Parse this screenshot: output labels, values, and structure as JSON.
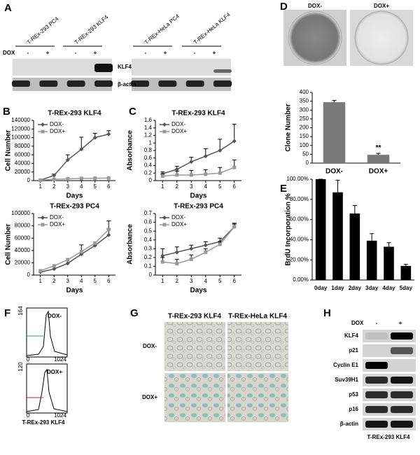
{
  "letters": [
    "A",
    "B",
    "C",
    "D",
    "E",
    "F",
    "G",
    "H"
  ],
  "blot_a": {
    "lanes": [
      "T-REx-293 PC4",
      "T-REx-293 KLF4",
      "T-REx-HeLa PC4",
      "T-REx-HeLa KLF4"
    ],
    "dox_label": "DOX",
    "dox_states": [
      "-",
      "+"
    ],
    "proteins": [
      "KLF4",
      "β-actin"
    ]
  },
  "dishes": {
    "labels": [
      "DOX-",
      "DOX+"
    ]
  },
  "flow": {
    "x_ticks": [
      "0",
      "1024"
    ],
    "plots": [
      {
        "label": "DOX-",
        "ymax": "164"
      },
      {
        "label": "DOX+",
        "ymax": "120"
      }
    ],
    "caption": "T-REx-293 KLF4"
  },
  "micro": {
    "columns": [
      "T-REx-293 KLF4",
      "T-REx-HeLa KLF4"
    ],
    "rows": [
      "DOX-",
      "DOX+"
    ]
  },
  "blot_h": {
    "dox_label": "DOX",
    "dox_states": [
      "-",
      "+"
    ],
    "proteins": [
      "KLF4",
      "p21",
      "Cyclin E1",
      "Suv39H1",
      "p53",
      "p16",
      "β-actin"
    ],
    "caption": "T-REx-293 KLF4"
  },
  "chart_data": [
    {
      "type": "line",
      "title": "T-REx-293 KLF4",
      "x_label": "Days",
      "y_label": "Cell Number",
      "x": [
        1,
        2,
        3,
        4,
        5,
        6
      ],
      "xlim": [
        0.5,
        6.5
      ],
      "xticks": [
        1,
        2,
        3,
        4,
        5,
        6
      ],
      "ylim": [
        0,
        140000
      ],
      "yticks": [
        0,
        20000,
        40000,
        60000,
        80000,
        100000,
        120000,
        140000
      ],
      "legend": "upper left",
      "series": [
        {
          "name": "DOX-",
          "color": "#555555",
          "marker": "diamond",
          "values": [
            1000,
            12000,
            48000,
            73000,
            100000,
            108000
          ],
          "errors": [
            null,
            3000,
            12000,
            28000,
            10000,
            8000
          ]
        },
        {
          "name": "DOX+",
          "color": "#999999",
          "marker": "square",
          "values": [
            1000,
            3000,
            4000,
            5000,
            5500,
            6000
          ],
          "errors": [
            null,
            null,
            null,
            null,
            null,
            null
          ]
        }
      ]
    },
    {
      "type": "line",
      "title": "T-REx-293 PC4",
      "x_label": "Days",
      "y_label": "Cell Number",
      "x": [
        1,
        2,
        3,
        4,
        5,
        6
      ],
      "xlim": [
        0.5,
        6.5
      ],
      "xticks": [
        1,
        2,
        3,
        4,
        5,
        6
      ],
      "ylim": [
        0,
        100000
      ],
      "yticks": [
        0,
        20000,
        40000,
        60000,
        80000,
        100000
      ],
      "legend": "upper left",
      "series": [
        {
          "name": "DOX-",
          "color": "#555555",
          "marker": "diamond",
          "values": [
            5000,
            10000,
            19000,
            34000,
            48000,
            65000
          ],
          "errors": [
            null,
            null,
            null,
            15000,
            null,
            10000
          ]
        },
        {
          "name": "DOX+",
          "color": "#999999",
          "marker": "square",
          "values": [
            7000,
            15000,
            25000,
            38000,
            52000,
            74000
          ],
          "errors": [
            null,
            null,
            null,
            null,
            null,
            14000
          ]
        }
      ]
    },
    {
      "type": "line",
      "title": "T-REx-293 KLF4",
      "x_label": "Days",
      "y_label": "Absorbance",
      "x": [
        1,
        2,
        3,
        4,
        5,
        6
      ],
      "xlim": [
        0.5,
        6.5
      ],
      "xticks": [
        1,
        2,
        3,
        4,
        5,
        6
      ],
      "ylim": [
        0,
        1.6
      ],
      "yticks": [
        0,
        0.2,
        0.4,
        0.6,
        0.8,
        1,
        1.2,
        1.4,
        1.6
      ],
      "legend": "upper left",
      "series": [
        {
          "name": "DOX-",
          "color": "#555555",
          "marker": "diamond",
          "values": [
            0.18,
            0.3,
            0.5,
            0.65,
            0.8,
            1.05
          ],
          "errors": [
            0.05,
            0.08,
            0.12,
            0.2,
            0.3,
            0.45
          ]
        },
        {
          "name": "DOX+",
          "color": "#999999",
          "marker": "square",
          "values": [
            0.12,
            0.15,
            0.15,
            0.17,
            0.2,
            0.35
          ],
          "errors": [
            0.05,
            0.1,
            0.12,
            0.12,
            0.15,
            0.2
          ]
        }
      ]
    },
    {
      "type": "line",
      "title": "T-REx-293 PC4",
      "x_label": "Days",
      "y_label": "Absorbance",
      "x": [
        1,
        2,
        3,
        4,
        5,
        6
      ],
      "xlim": [
        0.5,
        6.5
      ],
      "xticks": [
        1,
        2,
        3,
        4,
        5,
        6
      ],
      "ylim": [
        0,
        0.7
      ],
      "yticks": [
        0,
        0.1,
        0.2,
        0.3,
        0.4,
        0.5,
        0.6,
        0.7
      ],
      "legend": "upper left",
      "series": [
        {
          "name": "DOX-",
          "color": "#555555",
          "marker": "diamond",
          "values": [
            0.22,
            0.26,
            0.3,
            0.34,
            0.38,
            0.55
          ],
          "errors": [
            0.08,
            0.06,
            0.04,
            0.04,
            0.04,
            0.04
          ]
        },
        {
          "name": "DOX+",
          "color": "#999999",
          "marker": "square",
          "values": [
            0.15,
            0.13,
            0.18,
            0.26,
            0.35,
            0.55
          ],
          "errors": [
            0.05,
            0.05,
            0.05,
            0.04,
            0.03,
            0.03
          ]
        }
      ]
    },
    {
      "type": "bar",
      "y_label": "Clone Number",
      "categories": [
        "DOX-",
        "DOX+"
      ],
      "values": [
        345,
        47
      ],
      "errors": [
        10,
        8
      ],
      "color": "#7a7a7a",
      "annotation": "**",
      "ylim": [
        0,
        400
      ],
      "yticks": [
        0,
        50,
        100,
        150,
        200,
        250,
        300,
        350,
        400
      ]
    },
    {
      "type": "bar",
      "y_label": "BrdU Incorporation %",
      "categories": [
        "0day",
        "1day",
        "2day",
        "3day",
        "4day",
        "5day"
      ],
      "values": [
        100,
        87,
        66,
        39,
        33,
        14
      ],
      "errors": [
        0,
        12,
        8,
        7,
        4,
        1.5
      ],
      "color": "#000000",
      "ylim": [
        0,
        100
      ],
      "yticks": [
        {
          "value": 0,
          "label": "0.00%"
        },
        {
          "value": 20,
          "label": "20.00%"
        },
        {
          "value": 40,
          "label": "40.00%"
        },
        {
          "value": 60,
          "label": "60.00%"
        },
        {
          "value": 80,
          "label": "80.00%"
        },
        {
          "value": 100,
          "label": "100.00%"
        }
      ]
    }
  ]
}
